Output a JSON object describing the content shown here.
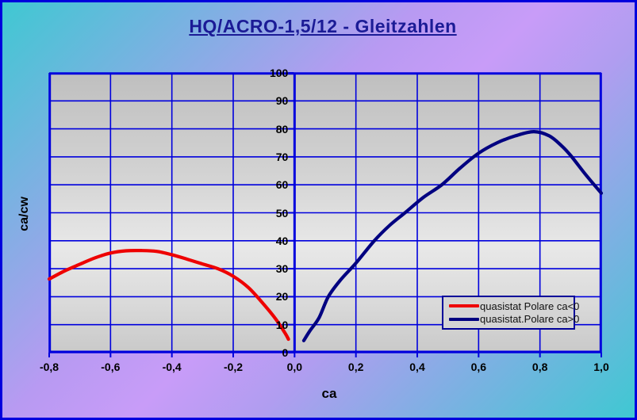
{
  "title": {
    "text": "HQ/ACRO-1,5/12 - Gleitzahlen",
    "color": "#1b1b96"
  },
  "window": {
    "border_color": "#0000dd",
    "background_gradient": [
      "#3fc8d2",
      "#c89cf8",
      "#3fc8d2"
    ]
  },
  "chart_data": {
    "type": "line",
    "title": "HQ/ACRO-1,5/12 - Gleitzahlen",
    "xlabel": "ca",
    "ylabel": "ca/cw",
    "xlim": [
      -0.8,
      1.0
    ],
    "ylim": [
      0,
      100
    ],
    "grid": true,
    "legend_position": "inside-lower-right",
    "x_ticks": [
      -0.8,
      -0.6,
      -0.4,
      -0.2,
      0.0,
      0.2,
      0.4,
      0.6,
      0.8,
      1.0
    ],
    "x_tick_labels": [
      "-0,8",
      "-0,6",
      "-0,4",
      "-0,2",
      "0,0",
      "0,2",
      "0,4",
      "0,6",
      "0,8",
      "1,0"
    ],
    "y_ticks": [
      0,
      10,
      20,
      30,
      40,
      50,
      60,
      70,
      80,
      90,
      100
    ],
    "y_tick_labels": [
      "0",
      "10",
      "20",
      "30",
      "40",
      "50",
      "60",
      "70",
      "80",
      "90",
      "100"
    ],
    "colors": {
      "grid": "#0000dd",
      "axis": "#0000dd",
      "plot_border": "#0000dd"
    },
    "series": [
      {
        "name": "quasistat Polare ca<0",
        "color": "#ee0000",
        "points": [
          [
            -0.8,
            26.3
          ],
          [
            -0.75,
            29.2
          ],
          [
            -0.7,
            31.6
          ],
          [
            -0.65,
            33.9
          ],
          [
            -0.6,
            35.6
          ],
          [
            -0.55,
            36.4
          ],
          [
            -0.5,
            36.5
          ],
          [
            -0.45,
            36.2
          ],
          [
            -0.4,
            35.0
          ],
          [
            -0.35,
            33.4
          ],
          [
            -0.3,
            31.7
          ],
          [
            -0.25,
            30.0
          ],
          [
            -0.2,
            27.3
          ],
          [
            -0.15,
            23.2
          ],
          [
            -0.1,
            17.2
          ],
          [
            -0.06,
            11.8
          ],
          [
            -0.03,
            6.8
          ],
          [
            -0.02,
            4.8
          ]
        ]
      },
      {
        "name": "quasistat.Polare ca>0",
        "color": "#000080",
        "points": [
          [
            0.03,
            4.3
          ],
          [
            0.05,
            7.8
          ],
          [
            0.08,
            12.5
          ],
          [
            0.11,
            20.0
          ],
          [
            0.15,
            26.0
          ],
          [
            0.2,
            32.0
          ],
          [
            0.26,
            40.0
          ],
          [
            0.31,
            45.5
          ],
          [
            0.36,
            50.0
          ],
          [
            0.42,
            55.5
          ],
          [
            0.48,
            60.0
          ],
          [
            0.54,
            66.0
          ],
          [
            0.6,
            71.3
          ],
          [
            0.66,
            75.0
          ],
          [
            0.72,
            77.5
          ],
          [
            0.78,
            79.0
          ],
          [
            0.83,
            77.5
          ],
          [
            0.87,
            74.0
          ],
          [
            0.9,
            70.5
          ],
          [
            0.95,
            63.5
          ],
          [
            1.0,
            57.0
          ]
        ]
      }
    ]
  }
}
